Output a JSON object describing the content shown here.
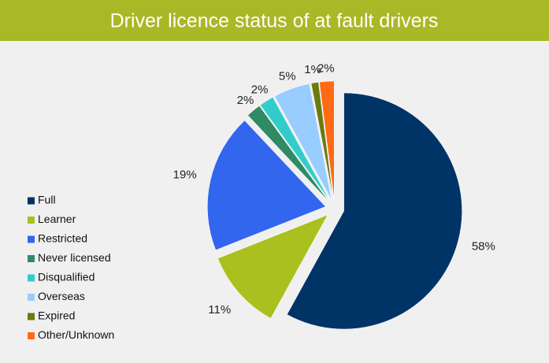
{
  "chart_data": {
    "type": "pie",
    "title": "Driver licence status of at fault drivers",
    "categories": [
      "Full",
      "Learner",
      "Restricted",
      "Never licensed",
      "Disqualified",
      "Overseas",
      "Expired",
      "Other/Unknown"
    ],
    "values": [
      58,
      11,
      19,
      2,
      2,
      5,
      1,
      2
    ],
    "value_labels": [
      "58%",
      "11%",
      "19%",
      "2%",
      "2%",
      "5%",
      "1%",
      "2%"
    ],
    "colors": [
      "#003366",
      "#a9c01e",
      "#3366ee",
      "#2e8b64",
      "#33cccc",
      "#99ccff",
      "#6b7a10",
      "#ff6a13"
    ],
    "legend": "left"
  }
}
